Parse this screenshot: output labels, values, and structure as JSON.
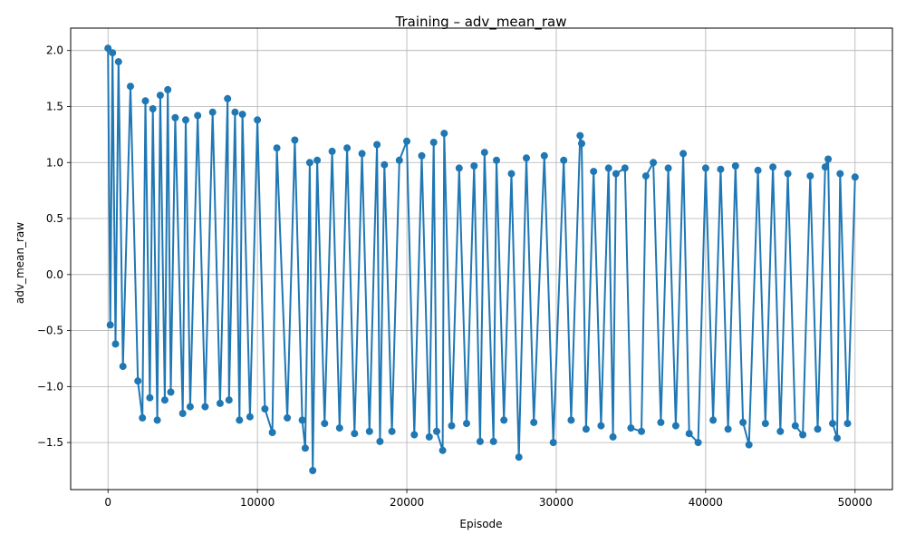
{
  "chart_data": {
    "type": "line",
    "title": "Training – adv_mean_raw",
    "xlabel": "Episode",
    "ylabel": "adv_mean_raw",
    "xlim": [
      -2500,
      52500
    ],
    "ylim": [
      -1.92,
      2.2
    ],
    "xticks": [
      0,
      10000,
      20000,
      30000,
      40000,
      50000
    ],
    "xtick_labels": [
      "0",
      "10000",
      "20000",
      "30000",
      "40000",
      "50000"
    ],
    "yticks": [
      -1.5,
      -1.0,
      -0.5,
      0.0,
      0.5,
      1.0,
      1.5,
      2.0
    ],
    "ytick_labels": [
      "−1.5",
      "−1.0",
      "−0.5",
      "0.0",
      "0.5",
      "1.0",
      "1.5",
      "2.0"
    ],
    "grid": true,
    "marker": "circle",
    "series": [
      {
        "color": "#1f77b4",
        "x": [
          0,
          150,
          300,
          500,
          700,
          1000,
          1500,
          2000,
          2300,
          2500,
          2800,
          3000,
          3300,
          3500,
          3800,
          4000,
          4200,
          4500,
          5000,
          5200,
          5500,
          6000,
          6500,
          7000,
          7500,
          8000,
          8100,
          8500,
          8800,
          9000,
          9500,
          10000,
          10500,
          11000,
          11300,
          12000,
          12500,
          13000,
          13200,
          13500,
          13700,
          14000,
          14500,
          15000,
          15500,
          16000,
          16500,
          17000,
          17500,
          18000,
          18200,
          18500,
          19000,
          19500,
          20000,
          20500,
          21000,
          21500,
          21800,
          22000,
          22400,
          22500,
          23000,
          23500,
          24000,
          24500,
          24900,
          25200,
          25800,
          26000,
          26500,
          27000,
          27500,
          28000,
          28500,
          29200,
          29800,
          30500,
          31000,
          31600,
          31700,
          32000,
          32500,
          33000,
          33500,
          33800,
          34000,
          34600,
          35000,
          35700,
          36000,
          36500,
          37000,
          37500,
          38000,
          38500,
          38900,
          39500,
          40000,
          40500,
          41000,
          41500,
          42000,
          42500,
          42900,
          43500,
          44000,
          44500,
          45000,
          45500,
          46000,
          46500,
          47000,
          47500,
          48000,
          48200,
          48500,
          48800,
          49000,
          49500,
          50000
        ],
        "y": [
          2.02,
          -0.45,
          1.98,
          -0.62,
          1.9,
          -0.82,
          1.68,
          -0.95,
          -1.28,
          1.55,
          -1.1,
          1.48,
          -1.3,
          1.6,
          -1.12,
          1.65,
          -1.05,
          1.4,
          -1.24,
          1.38,
          -1.18,
          1.42,
          -1.18,
          1.45,
          -1.15,
          1.57,
          -1.12,
          1.45,
          -1.3,
          1.43,
          -1.27,
          1.38,
          -1.2,
          -1.41,
          1.13,
          -1.28,
          1.2,
          -1.3,
          -1.55,
          1.0,
          -1.75,
          1.02,
          -1.33,
          1.1,
          -1.37,
          1.13,
          -1.42,
          1.08,
          -1.4,
          1.16,
          -1.49,
          0.98,
          -1.4,
          1.02,
          1.19,
          -1.43,
          1.06,
          -1.45,
          1.18,
          -1.4,
          -1.57,
          1.26,
          -1.35,
          0.95,
          -1.33,
          0.97,
          -1.49,
          1.09,
          -1.49,
          1.02,
          -1.3,
          0.9,
          -1.63,
          1.04,
          -1.32,
          1.06,
          -1.5,
          1.02,
          -1.3,
          1.24,
          1.17,
          -1.38,
          0.92,
          -1.35,
          0.95,
          -1.45,
          0.9,
          0.95,
          -1.37,
          -1.4,
          0.88,
          1.0,
          -1.32,
          0.95,
          -1.35,
          1.08,
          -1.42,
          -1.5,
          0.95,
          -1.3,
          0.94,
          -1.38,
          0.97,
          -1.32,
          -1.52,
          0.93,
          -1.33,
          0.96,
          -1.4,
          0.9,
          -1.35,
          -1.43,
          0.88,
          -1.38,
          0.96,
          1.03,
          -1.33,
          -1.46,
          0.9,
          -1.33,
          0.87
        ]
      }
    ]
  }
}
